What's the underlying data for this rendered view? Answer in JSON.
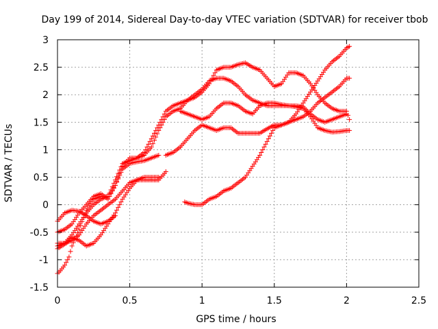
{
  "chart_data": {
    "type": "scatter",
    "title": "Day 199 of 2014, Sidereal Day-to-day VTEC variation (SDTVAR) for receiver tbob",
    "xlabel": "GPS time / hours",
    "ylabel": "SDTVAR / TECUs",
    "xlim": [
      0,
      2.5
    ],
    "ylim": [
      -1.5,
      3
    ],
    "xticks": [
      0,
      0.5,
      1,
      1.5,
      2,
      2.5
    ],
    "xtick_labels": [
      "0",
      "0.5",
      "1",
      "1.5",
      "2",
      "2.5"
    ],
    "yticks": [
      -1.5,
      -1,
      -0.5,
      0,
      0.5,
      1,
      1.5,
      2,
      2.5,
      3
    ],
    "ytick_labels": [
      "-1.5",
      "-1",
      "-0.5",
      "0",
      "0.5",
      "1",
      "1.5",
      "2",
      "2.5",
      "3"
    ],
    "grid": true,
    "marker": "+",
    "color": "#ff0000",
    "series": [
      {
        "x": [
          0.0,
          0.05,
          0.1,
          0.15,
          0.2,
          0.25,
          0.3,
          0.35,
          0.4,
          0.45,
          0.5,
          0.55,
          0.6,
          0.65,
          0.7,
          0.75,
          0.8,
          0.85,
          0.9,
          0.95,
          1.0,
          1.05,
          1.1,
          1.15,
          1.2,
          1.25,
          1.3,
          1.35,
          1.4,
          1.45,
          1.5,
          1.55,
          1.6,
          1.65,
          1.7,
          1.75,
          1.8,
          1.85,
          1.9,
          1.95,
          2.0,
          2.02
        ],
        "y": [
          -0.5,
          -0.45,
          -0.35,
          -0.15,
          0.0,
          0.15,
          0.2,
          0.1,
          0.35,
          0.7,
          0.85,
          0.85,
          0.95,
          1.2,
          1.45,
          1.7,
          1.8,
          1.85,
          1.9,
          1.95,
          2.05,
          2.2,
          2.45,
          2.5,
          2.5,
          2.55,
          2.58,
          2.5,
          2.45,
          2.3,
          2.15,
          2.2,
          2.4,
          2.4,
          2.35,
          2.2,
          2.0,
          1.85,
          1.75,
          1.7,
          1.7,
          1.55
        ]
      },
      {
        "x": [
          0.0,
          0.05,
          0.1,
          0.15,
          0.2,
          0.25,
          0.3,
          0.35,
          0.4,
          0.45,
          0.5,
          0.55,
          0.6,
          0.65,
          0.7,
          0.75,
          0.8,
          0.85,
          0.9,
          0.95,
          1.0,
          1.05,
          1.1,
          1.15,
          1.2,
          1.25,
          1.3,
          1.35,
          1.4,
          1.45,
          1.5,
          1.55,
          1.6,
          1.65,
          1.7,
          1.75,
          1.8,
          1.85,
          1.9,
          1.95,
          2.0,
          2.02
        ],
        "y": [
          -0.75,
          -0.7,
          -0.55,
          -0.35,
          -0.15,
          0.0,
          0.1,
          0.15,
          0.45,
          0.75,
          0.8,
          0.85,
          0.9,
          1.05,
          1.35,
          1.6,
          1.7,
          1.75,
          1.9,
          2.0,
          2.1,
          2.25,
          2.3,
          2.3,
          2.25,
          2.15,
          2.0,
          1.9,
          1.85,
          1.8,
          1.8,
          1.8,
          1.8,
          1.78,
          1.75,
          1.6,
          1.4,
          1.35,
          1.32,
          1.33,
          1.35,
          1.35
        ]
      },
      {
        "x": [
          0.0,
          0.05,
          0.1,
          0.15,
          0.2,
          0.25,
          0.3,
          0.35,
          0.4,
          0.45,
          0.5,
          0.55,
          0.6,
          0.65,
          0.7,
          0.75
        ],
        "y": [
          -0.7,
          -0.7,
          -0.65,
          -0.55,
          -0.35,
          -0.2,
          -0.1,
          0.0,
          0.1,
          0.25,
          0.4,
          0.45,
          0.45,
          0.45,
          0.45,
          0.6
        ]
      },
      {
        "x": [
          0.0,
          0.03,
          0.06,
          0.1,
          0.15,
          0.2,
          0.25,
          0.3,
          0.35,
          0.4,
          0.45,
          0.5,
          0.55,
          0.6,
          0.65,
          0.7
        ],
        "y": [
          -0.8,
          -0.75,
          -0.7,
          -0.6,
          -0.65,
          -0.75,
          -0.7,
          -0.55,
          -0.35,
          -0.15,
          0.1,
          0.3,
          0.45,
          0.5,
          0.5,
          0.5
        ]
      },
      {
        "x": [
          0.0,
          0.02,
          0.05,
          0.08,
          0.1,
          0.15,
          0.2,
          0.25,
          0.3,
          0.35,
          0.4,
          0.45,
          0.5,
          0.55,
          0.6,
          0.65,
          0.7
        ],
        "y": [
          -1.25,
          -1.2,
          -1.1,
          -0.95,
          -0.75,
          -0.45,
          -0.1,
          0.1,
          0.15,
          0.15,
          0.35,
          0.65,
          0.75,
          0.78,
          0.8,
          0.85,
          0.9
        ]
      },
      {
        "x": [
          0.0,
          0.05,
          0.1,
          0.15,
          0.2,
          0.25,
          0.3,
          0.35,
          0.4
        ],
        "y": [
          -0.3,
          -0.15,
          -0.1,
          -0.12,
          -0.2,
          -0.3,
          -0.35,
          -0.3,
          -0.2
        ]
      },
      {
        "x": [
          0.75,
          0.8,
          0.85,
          0.9,
          0.95,
          1.0,
          1.05,
          1.1,
          1.15,
          1.2,
          1.25,
          1.3,
          1.35,
          1.4,
          1.45,
          1.5,
          1.55,
          1.6,
          1.65,
          1.7,
          1.75,
          1.8,
          1.85,
          1.9,
          1.95,
          2.0,
          2.02
        ],
        "y": [
          0.9,
          0.95,
          1.05,
          1.2,
          1.35,
          1.45,
          1.4,
          1.35,
          1.4,
          1.4,
          1.3,
          1.3,
          1.3,
          1.3,
          1.38,
          1.45,
          1.45,
          1.5,
          1.65,
          1.85,
          2.05,
          2.25,
          2.45,
          2.6,
          2.7,
          2.85,
          2.88
        ]
      },
      {
        "x": [
          0.88,
          0.9,
          0.95,
          1.0,
          1.05,
          1.1,
          1.15,
          1.2,
          1.25,
          1.3,
          1.35,
          1.4,
          1.45,
          1.5,
          1.55,
          1.6,
          1.65,
          1.7,
          1.75,
          1.8,
          1.85,
          1.9,
          1.95,
          2.0,
          2.02
        ],
        "y": [
          0.05,
          0.03,
          0.0,
          0.0,
          0.1,
          0.15,
          0.25,
          0.3,
          0.4,
          0.5,
          0.7,
          0.9,
          1.15,
          1.4,
          1.45,
          1.5,
          1.55,
          1.6,
          1.7,
          1.85,
          1.95,
          2.05,
          2.15,
          2.3,
          2.3
        ]
      },
      {
        "x": [
          0.85,
          0.9,
          0.95,
          1.0,
          1.05,
          1.1,
          1.15,
          1.2,
          1.25,
          1.3,
          1.35,
          1.4,
          1.45,
          1.5,
          1.55,
          1.6,
          1.65,
          1.7,
          1.75,
          1.8,
          1.85,
          1.9,
          1.95,
          2.0
        ],
        "y": [
          1.7,
          1.65,
          1.6,
          1.55,
          1.6,
          1.75,
          1.85,
          1.85,
          1.8,
          1.7,
          1.65,
          1.8,
          1.85,
          1.85,
          1.82,
          1.8,
          1.8,
          1.78,
          1.65,
          1.55,
          1.5,
          1.55,
          1.6,
          1.65
        ]
      }
    ]
  }
}
